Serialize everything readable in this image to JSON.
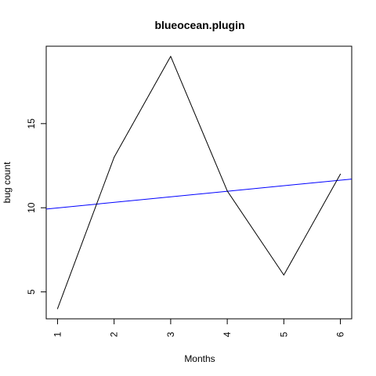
{
  "chart_data": {
    "type": "line",
    "title": "blueocean.plugin",
    "xlabel": "Months",
    "ylabel": "bug count",
    "x": [
      1,
      2,
      3,
      4,
      5,
      6
    ],
    "series": [
      {
        "values": [
          4,
          13,
          19,
          11,
          6,
          12
        ],
        "color": "#000000"
      }
    ],
    "trend_line": {
      "intercept": 9.66,
      "slope": 0.33,
      "color": "#0000ff"
    },
    "xlim": [
      0.8,
      6.2
    ],
    "ylim": [
      3.4,
      19.6
    ],
    "xticks": [
      "1",
      "2",
      "3",
      "4",
      "5",
      "6"
    ],
    "yticks": [
      "5",
      "10",
      "15"
    ],
    "grid": false,
    "legend": "none"
  }
}
